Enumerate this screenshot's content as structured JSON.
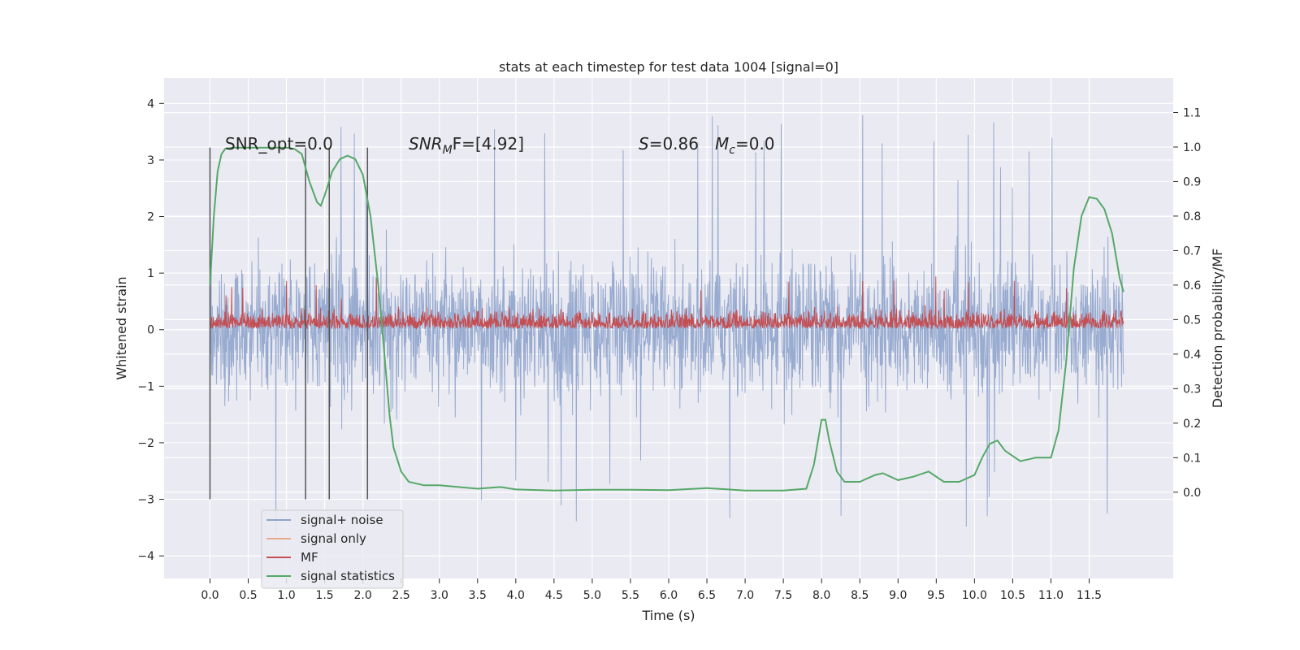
{
  "chart_data": {
    "type": "line",
    "title": "stats at each timestep for test data 1004 [signal=0]",
    "xlabel": "Time (s)",
    "ylabel": "Whitened strain",
    "ylabel_right": "Detection probability/MF",
    "xlim": [
      -0.6,
      12.6
    ],
    "ylim": [
      -4.4,
      4.45
    ],
    "ylim_right": [
      -0.25,
      1.2
    ],
    "x_ticks": [
      "0.0",
      "0.5",
      "1.0",
      "1.5",
      "2.0",
      "2.5",
      "3.0",
      "3.5",
      "4.0",
      "4.5",
      "5.0",
      "5.5",
      "6.0",
      "6.5",
      "7.0",
      "7.5",
      "8.0",
      "8.5",
      "9.0",
      "9.5",
      "10.0",
      "10.5",
      "11.0",
      "11.5"
    ],
    "y_ticks": [
      "4",
      "3",
      "2",
      "1",
      "0",
      "−1",
      "−2",
      "−3",
      "−4"
    ],
    "y_right_ticks": [
      "1.1",
      "1.0",
      "0.9",
      "0.8",
      "0.7",
      "0.6",
      "0.5",
      "0.4",
      "0.3",
      "0.2",
      "0.1",
      "0.0"
    ],
    "grid": true,
    "legend_position": "lower-left",
    "annotations": {
      "snr_opt": "SNR_opt=0.0",
      "snr_mf_symbol": "SNR",
      "snr_mf_sub": "M",
      "snr_mf_rest": "F=[4.92]",
      "s_symbol": "S",
      "s_rest": "=0.86",
      "mc_symbol": "M",
      "mc_sub": "c",
      "mc_rest": "=0.0"
    },
    "vertical_lines_x": [
      0.0,
      1.25,
      1.56,
      2.06
    ],
    "vertical_lines_range": [
      -3.0,
      3.22
    ],
    "series": [
      {
        "name": "signal+ noise",
        "color": "#8fa4cc",
        "envelope": {
          "x_range": [
            0.0,
            11.95
          ],
          "typical": [
            -1.7,
            1.8
          ],
          "spikes_max": 4.1,
          "spikes_min": -3.9
        }
      },
      {
        "name": "signal only",
        "color": "#e8a98c",
        "values": []
      },
      {
        "name": "MF",
        "color": "#c44e52",
        "envelope": {
          "x_range": [
            0.0,
            11.95
          ],
          "typical": [
            0.02,
            0.55
          ],
          "spikes_max": 1.0
        }
      },
      {
        "name": "signal statistics",
        "color": "#55a868",
        "axis": "right",
        "x": [
          0.0,
          0.05,
          0.1,
          0.15,
          0.2,
          0.3,
          0.5,
          0.8,
          1.0,
          1.1,
          1.2,
          1.3,
          1.4,
          1.45,
          1.5,
          1.6,
          1.7,
          1.8,
          1.9,
          2.0,
          2.1,
          2.2,
          2.25,
          2.3,
          2.35,
          2.4,
          2.5,
          2.6,
          2.8,
          3.0,
          3.5,
          3.8,
          4.0,
          4.5,
          5.0,
          5.5,
          6.0,
          6.5,
          7.0,
          7.5,
          7.8,
          7.9,
          8.0,
          8.05,
          8.1,
          8.2,
          8.3,
          8.5,
          8.7,
          8.8,
          9.0,
          9.2,
          9.4,
          9.6,
          9.8,
          10.0,
          10.1,
          10.2,
          10.3,
          10.4,
          10.6,
          10.8,
          10.9,
          11.0,
          11.1,
          11.2,
          11.3,
          11.4,
          11.5,
          11.6,
          11.7,
          11.8,
          11.9,
          11.95
        ],
        "values": [
          0.6,
          0.8,
          0.93,
          0.98,
          0.995,
          0.998,
          0.998,
          0.998,
          0.998,
          0.995,
          0.98,
          0.9,
          0.84,
          0.83,
          0.86,
          0.93,
          0.965,
          0.975,
          0.965,
          0.92,
          0.8,
          0.6,
          0.48,
          0.35,
          0.22,
          0.13,
          0.06,
          0.03,
          0.02,
          0.02,
          0.01,
          0.015,
          0.008,
          0.005,
          0.007,
          0.007,
          0.006,
          0.012,
          0.005,
          0.005,
          0.01,
          0.08,
          0.21,
          0.21,
          0.15,
          0.06,
          0.03,
          0.03,
          0.05,
          0.055,
          0.035,
          0.045,
          0.06,
          0.03,
          0.03,
          0.05,
          0.1,
          0.14,
          0.15,
          0.12,
          0.09,
          0.1,
          0.1,
          0.1,
          0.18,
          0.38,
          0.65,
          0.8,
          0.855,
          0.85,
          0.82,
          0.75,
          0.62,
          0.58
        ]
      }
    ]
  }
}
